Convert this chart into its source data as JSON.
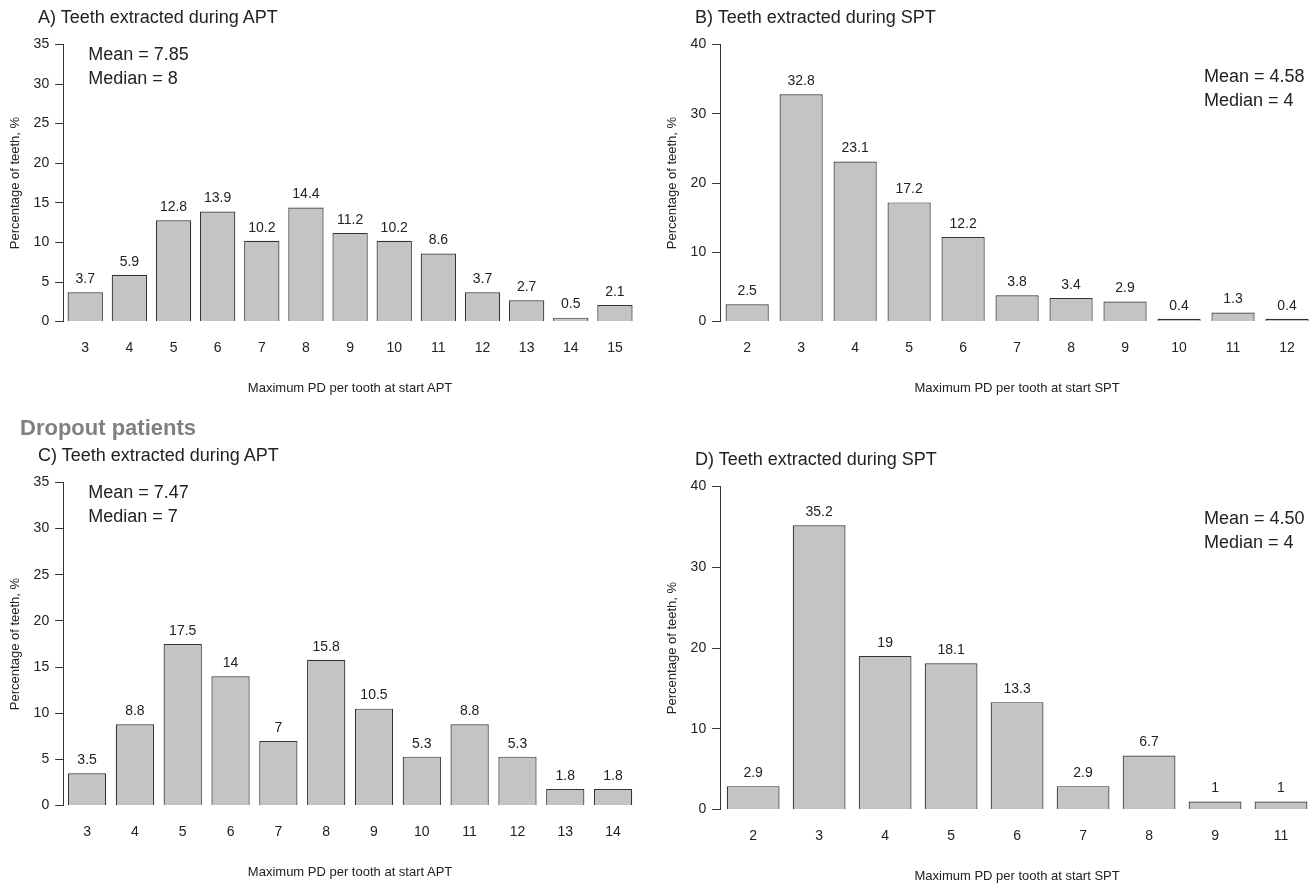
{
  "chart_data": [
    {
      "type": "bar",
      "title": "A) Teeth extracted during APT",
      "xlabel": "Maximum PD per tooth at start APT",
      "ylabel": "Percentage of teeth, %",
      "categories": [
        "3",
        "4",
        "5",
        "6",
        "7",
        "8",
        "9",
        "10",
        "11",
        "12",
        "13",
        "14",
        "15"
      ],
      "values": [
        3.7,
        5.9,
        12.8,
        13.9,
        10.2,
        14.4,
        11.2,
        10.2,
        8.6,
        3.7,
        2.7,
        0.5,
        2.1
      ],
      "color": "#c4c4c6",
      "ylim": [
        0,
        35
      ],
      "yticks": [
        0,
        5,
        10,
        15,
        20,
        25,
        30,
        35
      ],
      "data_labels": true,
      "grid": false,
      "legend": false,
      "annotations": [
        "Mean = 7.85",
        "Median = 8"
      ]
    },
    {
      "type": "bar",
      "title": "B) Teeth extracted during SPT",
      "xlabel": "Maximum PD per tooth at start SPT",
      "ylabel": "Percentage of teeth, %",
      "categories": [
        "2",
        "3",
        "4",
        "5",
        "6",
        "7",
        "8",
        "9",
        "10",
        "11",
        "12"
      ],
      "values": [
        2.5,
        32.8,
        23.1,
        17.2,
        12.2,
        3.8,
        3.4,
        2.9,
        0.4,
        1.3,
        0.4
      ],
      "color": "#c4c4c6",
      "ylim": [
        0,
        40
      ],
      "yticks": [
        0,
        10,
        20,
        30,
        40
      ],
      "data_labels": true,
      "grid": false,
      "legend": false,
      "annotations": [
        "Mean = 4.58",
        "Median = 4"
      ]
    },
    {
      "type": "bar",
      "subtitle": "Dropout patients",
      "title": "C) Teeth extracted during APT",
      "xlabel": "Maximum PD per tooth at start APT",
      "ylabel": "Percentage of teeth, %",
      "categories": [
        "3",
        "4",
        "5",
        "6",
        "7",
        "8",
        "9",
        "10",
        "11",
        "12",
        "13",
        "14"
      ],
      "values": [
        3.5,
        8.8,
        17.5,
        14,
        7,
        15.8,
        10.5,
        5.3,
        8.8,
        5.3,
        1.8,
        1.8
      ],
      "color": "#c4c4c6",
      "ylim": [
        0,
        35
      ],
      "yticks": [
        0,
        5,
        10,
        15,
        20,
        25,
        30,
        35
      ],
      "data_labels": true,
      "grid": false,
      "legend": false,
      "annotations": [
        "Mean = 7.47",
        "Median = 7"
      ]
    },
    {
      "type": "bar",
      "title": "D) Teeth extracted during SPT",
      "xlabel": "Maximum PD per tooth at start SPT",
      "ylabel": "Percentage of teeth, %",
      "categories": [
        "2",
        "3",
        "4",
        "5",
        "6",
        "7",
        "8",
        "9",
        "11"
      ],
      "values": [
        2.9,
        35.2,
        19,
        18.1,
        13.3,
        2.9,
        6.7,
        1,
        1
      ],
      "color": "#c4c4c6",
      "ylim": [
        0,
        40
      ],
      "yticks": [
        0,
        10,
        20,
        30,
        40
      ],
      "data_labels": true,
      "grid": false,
      "legend": false,
      "annotations": [
        "Mean = 4.50",
        "Median = 4"
      ]
    }
  ]
}
